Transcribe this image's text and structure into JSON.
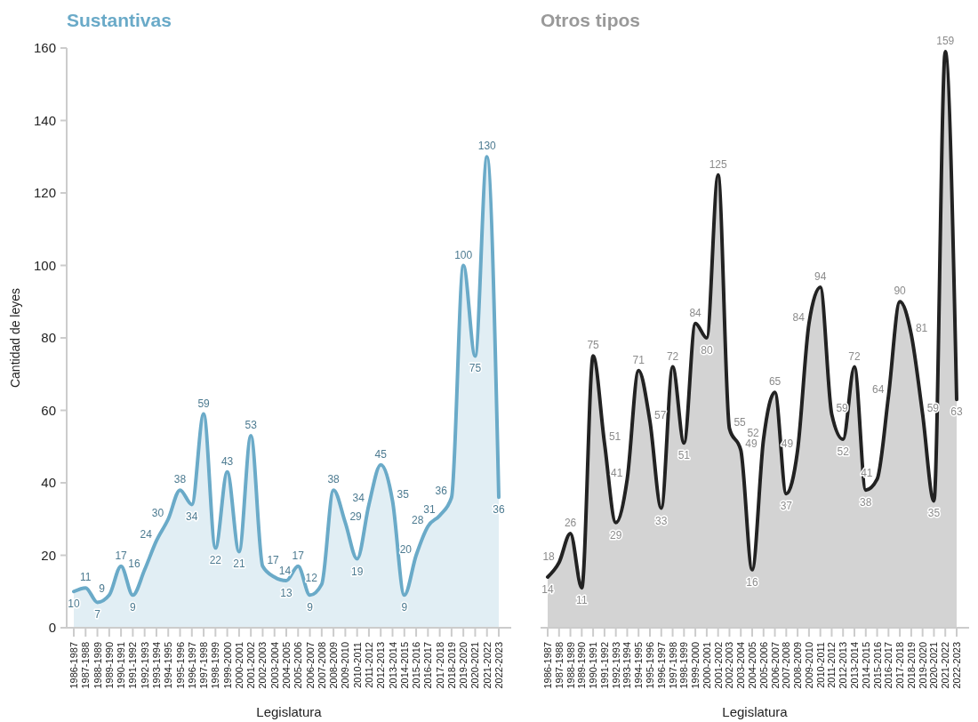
{
  "chart_data": [
    {
      "type": "area",
      "title": "Sustantivas",
      "xlabel": "Legislatura",
      "ylabel": "Cantidad de leyes",
      "categories": [
        "1986-1987",
        "1987-1988",
        "1988-1989",
        "1989-1990",
        "1990-1991",
        "1991-1992",
        "1992-1993",
        "1993-1994",
        "1994-1995",
        "1995-1996",
        "1996-1997",
        "1997-1998",
        "1998-1999",
        "1999-2000",
        "2000-2001",
        "2001-2002",
        "2002-2003",
        "2003-2004",
        "2004-2005",
        "2005-2006",
        "2006-2007",
        "2007-2008",
        "2008-2009",
        "2009-2010",
        "2010-2011",
        "2011-2012",
        "2012-2013",
        "2013-2014",
        "2014-2015",
        "2015-2016",
        "2016-2017",
        "2017-2018",
        "2018-2019",
        "2019-2020",
        "2020-2021",
        "2021-2022",
        "2022-2023"
      ],
      "series": [
        {
          "color": "#6aaac8",
          "values": [
            10,
            11,
            7,
            9,
            17,
            9,
            16,
            24,
            30,
            38,
            34,
            59,
            22,
            43,
            21,
            53,
            17,
            14,
            13,
            17,
            9,
            12,
            38,
            29,
            19,
            34,
            45,
            35,
            9,
            20,
            28,
            31,
            36,
            100,
            75,
            130,
            36
          ]
        }
      ],
      "ylim": [
        0,
        160
      ],
      "yticks": [
        0,
        20,
        40,
        60,
        80,
        100,
        120,
        140,
        160
      ],
      "grid": false,
      "data_labels": true
    },
    {
      "type": "area",
      "title": "Otros tipos",
      "xlabel": "Legislatura",
      "categories": [
        "1986-1987",
        "1987-1988",
        "1988-1989",
        "1989-1990",
        "1990-1991",
        "1991-1992",
        "1992-1993",
        "1993-1994",
        "1994-1995",
        "1995-1996",
        "1996-1997",
        "1997-1998",
        "1998-1999",
        "1999-2000",
        "2000-2001",
        "2001-2002",
        "2002-2003",
        "2003-2004",
        "2004-2005",
        "2005-2006",
        "2006-2007",
        "2007-2008",
        "2008-2009",
        "2009-2010",
        "2010-2011",
        "2011-2012",
        "2012-2013",
        "2013-2014",
        "2014-2015",
        "2015-2016",
        "2016-2017",
        "2017-2018",
        "2018-2019",
        "2019-2020",
        "2020-2021",
        "2021-2022",
        "2022-2023"
      ],
      "series": [
        {
          "color": "#222222",
          "values": [
            14,
            18,
            26,
            11,
            75,
            51,
            29,
            41,
            71,
            57,
            33,
            72,
            51,
            84,
            80,
            125,
            55,
            49,
            16,
            52,
            65,
            37,
            49,
            84,
            94,
            59,
            52,
            72,
            38,
            41,
            64,
            90,
            81,
            59,
            35,
            159,
            63
          ]
        }
      ],
      "ylim": [
        0,
        160
      ],
      "yticks": [
        0,
        20,
        40,
        60,
        80,
        100,
        120,
        140,
        160
      ],
      "grid": false,
      "data_labels": true,
      "tick_labels": "x"
    }
  ]
}
